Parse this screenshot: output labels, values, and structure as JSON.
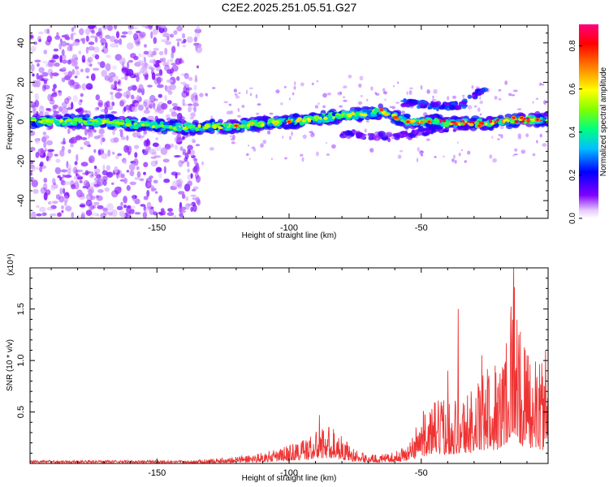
{
  "title": "C2E2.2025.251.05.51.G27",
  "chart_data": [
    {
      "type": "heatmap",
      "xlabel": "Height of straight line (km)",
      "ylabel": "Frequency (Hz)",
      "xlim": [
        -198,
        -2
      ],
      "ylim": [
        -49,
        49
      ],
      "xticks": [
        -150,
        -100,
        -50
      ],
      "yticks": [
        -40,
        -20,
        0,
        20,
        40
      ],
      "colorbar": {
        "label": "Normalized spectral amplitude",
        "range": [
          0,
          0.9
        ],
        "ticks": [
          "0.0",
          "0.2",
          "0.4",
          "0.6",
          "0.8"
        ],
        "colors": [
          "#ffffff",
          "#8000ff",
          "#0000ff",
          "#00c0ff",
          "#00ff80",
          "#80ff00",
          "#ffff00",
          "#ff8000",
          "#ff0000",
          "#ff0080"
        ]
      },
      "structures": [
        {
          "name": "scatter region",
          "x_range": [
            -198,
            -136
          ],
          "y_range": [
            -49,
            49
          ],
          "amplitude": 0.1
        },
        {
          "name": "main band",
          "points": [
            [
              -198,
              0
            ],
            [
              -170,
              0
            ],
            [
              -140,
              -3
            ],
            [
              -120,
              -2
            ],
            [
              -100,
              0
            ],
            [
              -80,
              3
            ],
            [
              -65,
              5
            ],
            [
              -55,
              0
            ],
            [
              -45,
              0
            ],
            [
              -30,
              -1
            ],
            [
              -10,
              1
            ],
            [
              -2,
              1
            ]
          ],
          "amplitude": 0.5
        },
        {
          "name": "upper branch",
          "points": [
            [
              -58,
              10
            ],
            [
              -45,
              8
            ],
            [
              -35,
              8
            ],
            [
              -25,
              18
            ]
          ],
          "amplitude": 0.15
        },
        {
          "name": "lower branch",
          "points": [
            [
              -80,
              -6
            ],
            [
              -60,
              -8
            ],
            [
              -45,
              -4
            ],
            [
              -30,
              -2
            ]
          ],
          "amplitude": 0.1
        }
      ]
    },
    {
      "type": "line",
      "xlabel": "Height of straight line (km)",
      "ylabel": "SNR (10 * v/v)",
      "scale_note": "(x10⁴)",
      "xlim": [
        -198,
        -2
      ],
      "ylim": [
        0,
        1.9
      ],
      "xticks": [
        -150,
        -100,
        -50
      ],
      "yticks": [
        "0.5",
        "1.0",
        "1.5"
      ],
      "series": [
        {
          "name": "SNR",
          "color": "#ee3333",
          "envelope_x": [
            -198,
            -140,
            -130,
            -115,
            -105,
            -95,
            -90,
            -85,
            -80,
            -75,
            -70,
            -65,
            -60,
            -55,
            -52,
            -50,
            -45,
            -40,
            -35,
            -30,
            -25,
            -20,
            -17,
            -15,
            -13,
            -10,
            -5,
            -2
          ],
          "envelope_y": [
            0.02,
            0.02,
            0.04,
            0.08,
            0.12,
            0.22,
            0.28,
            0.35,
            0.25,
            0.12,
            0.08,
            0.08,
            0.1,
            0.18,
            0.3,
            0.45,
            0.55,
            0.6,
            0.6,
            0.7,
            0.85,
            0.9,
            1.4,
            1.9,
            1.2,
            1.0,
            0.9,
            0.85
          ],
          "peaks": [
            [
              -88.5,
              0.47
            ],
            [
              -52,
              0.35
            ],
            [
              -40,
              0.9
            ],
            [
              -36,
              1.5
            ],
            [
              -27,
              1.05
            ],
            [
              -22,
              0.95
            ],
            [
              -15,
              1.93
            ],
            [
              -13,
              1.25
            ],
            [
              -10,
              1.05
            ],
            [
              -3,
              1.1
            ]
          ]
        }
      ]
    }
  ]
}
